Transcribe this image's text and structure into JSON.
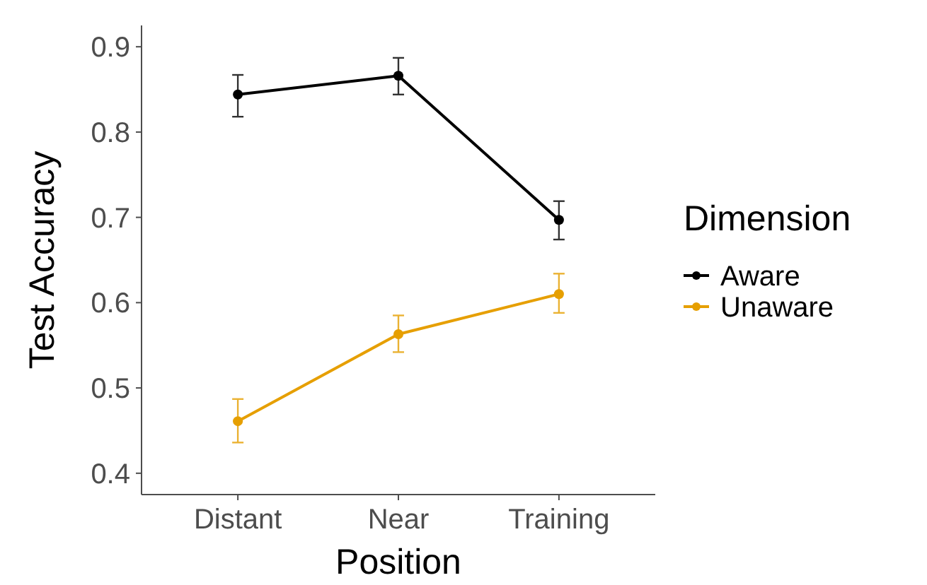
{
  "chart_data": {
    "type": "line",
    "xlabel": "Position",
    "ylabel": "Test Accuracy",
    "legend_title": "Dimension",
    "categories": [
      "Distant",
      "Near",
      "Training"
    ],
    "ylim": [
      0.375,
      0.925
    ],
    "yticks": [
      0.4,
      0.5,
      0.6,
      0.7,
      0.8,
      0.9
    ],
    "grid": false,
    "legend": "right",
    "marker": "circle",
    "series": [
      {
        "name": "Aware",
        "color": "#000000",
        "values": [
          0.844,
          0.866,
          0.697
        ],
        "errors": [
          [
            0.818,
            0.867
          ],
          [
            0.844,
            0.887
          ],
          [
            0.674,
            0.719
          ]
        ]
      },
      {
        "name": "Unaware",
        "color": "#e69f00",
        "values": [
          0.461,
          0.563,
          0.61
        ],
        "errors": [
          [
            0.436,
            0.487
          ],
          [
            0.542,
            0.585
          ],
          [
            0.588,
            0.634
          ]
        ]
      }
    ]
  }
}
